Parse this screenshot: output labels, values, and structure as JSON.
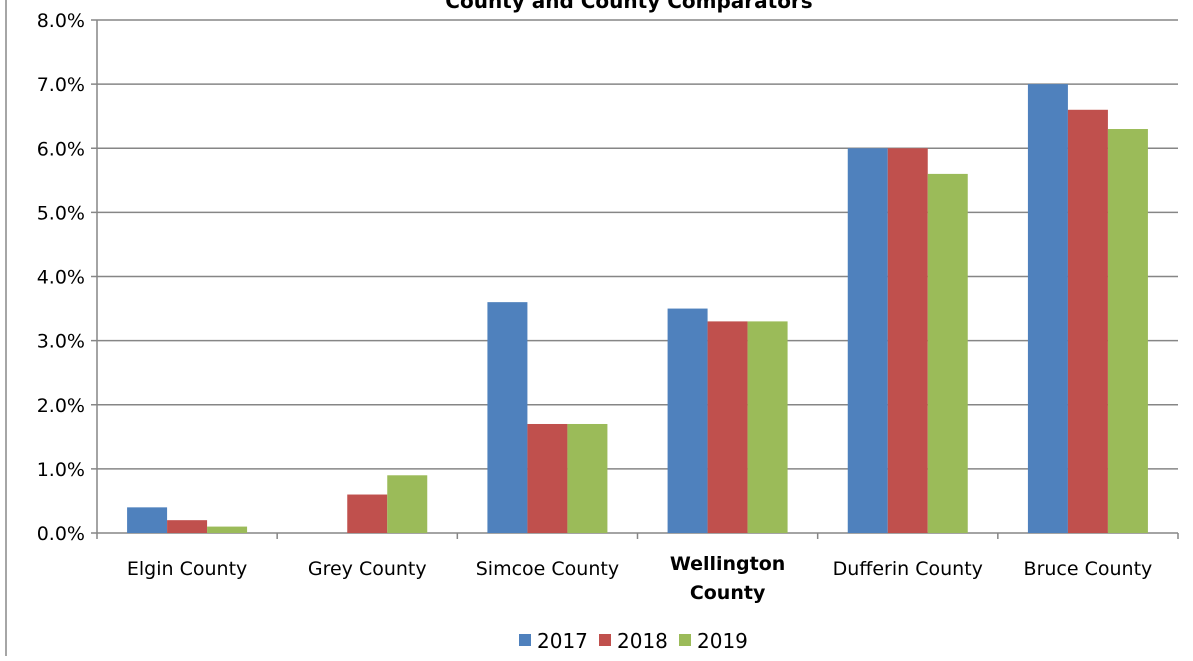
{
  "chart_data": {
    "type": "bar",
    "title": "County and County Comparators",
    "xlabel": "",
    "ylabel": "",
    "ylim": [
      0,
      0.08
    ],
    "yticks": [
      "0.0%",
      "1.0%",
      "2.0%",
      "3.0%",
      "4.0%",
      "5.0%",
      "6.0%",
      "7.0%",
      "8.0%"
    ],
    "categories": [
      "Elgin County",
      "Grey County",
      "Simcoe County",
      "Wellington County",
      "Dufferin County",
      "Bruce County"
    ],
    "highlight_category": "Wellington County",
    "grid": true,
    "legend_position": "bottom",
    "series": [
      {
        "name": "2017",
        "color": "#4F81BD",
        "values": [
          0.004,
          0.0,
          0.036,
          0.035,
          0.06,
          0.07
        ]
      },
      {
        "name": "2018",
        "color": "#C0504D",
        "values": [
          0.002,
          0.006,
          0.017,
          0.033,
          0.06,
          0.066
        ]
      },
      {
        "name": "2019",
        "color": "#9BBB59",
        "values": [
          0.001,
          0.009,
          0.017,
          0.033,
          0.056,
          0.063
        ]
      }
    ]
  }
}
